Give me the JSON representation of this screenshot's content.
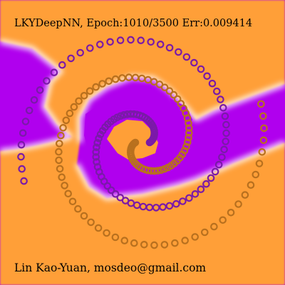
{
  "title": "LKYDeepNN, Epoch:1010/3500  Err:0.009414",
  "credit": "Lin Kao-Yuan, mosdeo@gmail.com",
  "colors": {
    "class_a_region": "#b000ee",
    "class_b_region": "#ff9f37",
    "boundary_glow": "#ffffff",
    "class_a_points": "#7a1aa8",
    "class_b_points": "#b8701e",
    "text": "#000000"
  }
}
